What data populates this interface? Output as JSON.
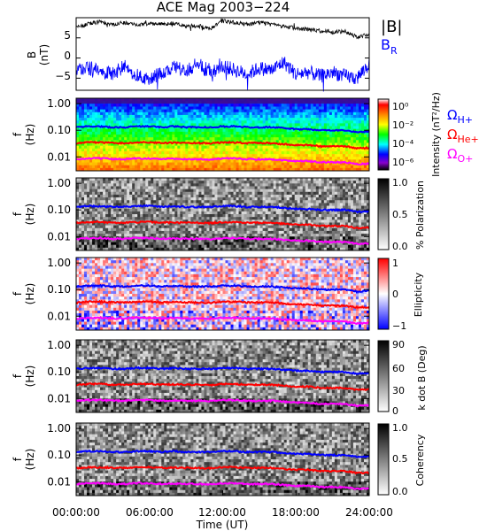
{
  "title": "ACE Mag 2003−224",
  "time_axis": {
    "label": "Time (UT)",
    "ticks": [
      "00:00:00",
      "06:00:00",
      "12:00:00",
      "18:00:00",
      "24:00:00"
    ],
    "range_hours": [
      0,
      24
    ]
  },
  "colors": {
    "B_total": "#000000",
    "B_R": "#0000ff",
    "H_plus": "#0000ff",
    "He_plus": "#ff0000",
    "O_plus": "#ff00ff"
  },
  "chart_data": [
    {
      "type": "line",
      "ylabel": "B (nT)",
      "ylim": [
        -8,
        10
      ],
      "yticks": [
        "5",
        "0",
        "−5"
      ],
      "series": [
        {
          "name": "|B|",
          "x": [
            0,
            1,
            2,
            3,
            4,
            5,
            6,
            7,
            8,
            9,
            10,
            11,
            12,
            13,
            14,
            15,
            16,
            17,
            18,
            19,
            20,
            21,
            22,
            23,
            24
          ],
          "values": [
            7.5,
            8.5,
            9.0,
            8.3,
            8.8,
            8.2,
            8.6,
            8.4,
            8.6,
            7.9,
            8.0,
            7.2,
            9.2,
            8.8,
            8.4,
            8.8,
            8.3,
            7.8,
            7.4,
            7.0,
            6.8,
            6.4,
            6.6,
            5.2,
            5.8
          ]
        },
        {
          "name": "B_R",
          "x": [
            0,
            1,
            2,
            3,
            4,
            5,
            6,
            7,
            8,
            9,
            10,
            11,
            12,
            13,
            14,
            15,
            16,
            17,
            18,
            19,
            20,
            21,
            22,
            23,
            24
          ],
          "values": [
            -3.0,
            -2.5,
            -3.5,
            -4.0,
            -2.0,
            -4.5,
            -5.5,
            -3.5,
            -2.5,
            -3.0,
            -1.5,
            -3.5,
            -2.0,
            -3.0,
            -4.0,
            -2.5,
            -3.0,
            -1.0,
            -4.0,
            -3.5,
            -4.5,
            -3.5,
            -4.5,
            -5.0,
            -1.5
          ]
        }
      ]
    },
    {
      "type": "heatmap",
      "ylabel": "f (Hz)",
      "yticks": [
        "1.00",
        "0.10",
        "0.01"
      ],
      "colorbar_label": "Intensity (nT²/Hz)",
      "colorbar_ticks": [
        "10⁰",
        "10⁻²",
        "10⁻⁴",
        "10⁻⁶"
      ],
      "legend": [
        "ΩH+",
        "ΩHe+",
        "ΩO+"
      ]
    },
    {
      "type": "heatmap",
      "ylabel": "f (Hz)",
      "yticks": [
        "1.00",
        "0.10",
        "0.01"
      ],
      "colorbar_label": "% Polarization",
      "colorbar_ticks": [
        "1.0",
        "0.5",
        "0.0"
      ]
    },
    {
      "type": "heatmap",
      "ylabel": "f (Hz)",
      "yticks": [
        "1.00",
        "0.10",
        "0.01"
      ],
      "colorbar_label": "Ellipticity",
      "colorbar_ticks": [
        "1",
        "0",
        "−1"
      ]
    },
    {
      "type": "heatmap",
      "ylabel": "f (Hz)",
      "yticks": [
        "1.00",
        "0.10",
        "0.01"
      ],
      "colorbar_label": "k dot B (Deg)",
      "colorbar_ticks": [
        "90",
        "60",
        "30",
        "0"
      ]
    },
    {
      "type": "heatmap",
      "ylabel": "f (Hz)",
      "yticks": [
        "1.00",
        "0.10",
        "0.01"
      ],
      "colorbar_label": "Coherency",
      "colorbar_ticks": [
        "1.0",
        "0.5",
        "0.0"
      ]
    }
  ],
  "gyrofrequencies": {
    "x": [
      0,
      1,
      2,
      3,
      4,
      5,
      6,
      7,
      8,
      9,
      10,
      11,
      12,
      13,
      14,
      15,
      16,
      17,
      18,
      19,
      20,
      21,
      22,
      23,
      24
    ],
    "H_plus_hz": [
      0.13,
      0.14,
      0.14,
      0.13,
      0.13,
      0.14,
      0.14,
      0.13,
      0.14,
      0.13,
      0.13,
      0.13,
      0.14,
      0.14,
      0.13,
      0.13,
      0.13,
      0.12,
      0.11,
      0.11,
      0.1,
      0.1,
      0.1,
      0.085,
      0.09
    ],
    "He_plus_hz": [
      0.032,
      0.035,
      0.035,
      0.033,
      0.033,
      0.035,
      0.035,
      0.033,
      0.034,
      0.033,
      0.033,
      0.032,
      0.035,
      0.035,
      0.033,
      0.033,
      0.033,
      0.03,
      0.028,
      0.028,
      0.025,
      0.025,
      0.025,
      0.021,
      0.022
    ],
    "O_plus_hz": [
      0.008,
      0.0087,
      0.0088,
      0.0082,
      0.0083,
      0.0088,
      0.0087,
      0.0082,
      0.0085,
      0.0082,
      0.0082,
      0.008,
      0.0087,
      0.0087,
      0.0082,
      0.0082,
      0.0082,
      0.0075,
      0.007,
      0.007,
      0.0063,
      0.0063,
      0.0063,
      0.0053,
      0.0056
    ]
  }
}
